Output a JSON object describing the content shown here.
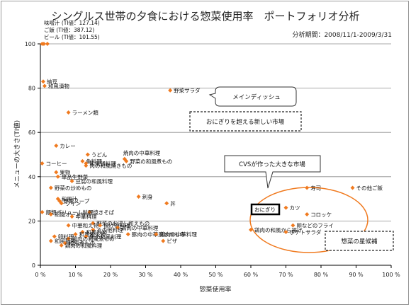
{
  "header": {
    "title": "シングルス世帯の夕食における惣菜使用率　ポートフォリオ分析",
    "period": "分析期間：2008/11/1-2009/3/31"
  },
  "colors": {
    "point": "#f07a1f",
    "ellipse": "#f07a1f",
    "grid": "#8c8c8c",
    "axis": "#000000"
  },
  "chart_data": {
    "type": "scatter",
    "xlabel": "惣菜使用率",
    "ylabel": "メニューの大きさ(TI値)",
    "xlim": [
      0,
      100
    ],
    "ylim": [
      0,
      100
    ],
    "x_ticks": [
      "0 %",
      "10 %",
      "20 %",
      "30 %",
      "40 %",
      "50 %",
      "60 %",
      "70 %",
      "80 %",
      "90 %",
      "100 %"
    ],
    "y_ticks": [
      "0",
      "20",
      "40",
      "60",
      "80",
      "100"
    ],
    "grid": true,
    "points": [
      {
        "label": "味噌汁 (TI値：127.14)",
        "x": 0.5,
        "y": 100,
        "la": "right"
      },
      {
        "label": "ご飯 (TI値：387.12)",
        "x": 1,
        "y": 100,
        "la": "right"
      },
      {
        "label": "ビール (TI値：101.55)",
        "x": 2,
        "y": 100,
        "la": "right"
      },
      {
        "label": "納豆",
        "x": 0.8,
        "y": 83,
        "la": "right"
      },
      {
        "label": "和風漬物",
        "x": 1.2,
        "y": 81,
        "la": "right"
      },
      {
        "label": "野菜サラダ",
        "x": 37,
        "y": 79,
        "la": "right"
      },
      {
        "label": "ラーメン類",
        "x": 8,
        "y": 69,
        "la": "right"
      },
      {
        "label": "カレー",
        "x": 4.5,
        "y": 54,
        "la": "right"
      },
      {
        "label": "うどん",
        "x": 13.5,
        "y": 50,
        "la": "right"
      },
      {
        "label": "焼肉の中華料理",
        "x": 24,
        "y": 48,
        "la": "top"
      },
      {
        "label": "野菜の和風煮もの",
        "x": 24.5,
        "y": 47,
        "la": "right"
      },
      {
        "label": "コーヒー",
        "x": 0.5,
        "y": 46,
        "la": "right"
      },
      {
        "label": "魚料理",
        "x": 12,
        "y": 47,
        "la": "right"
      },
      {
        "label": "和風鍋料理",
        "x": 13,
        "y": 46,
        "la": "right"
      },
      {
        "label": "肉の和風焼きもの",
        "x": 13,
        "y": 45,
        "la": "right"
      },
      {
        "label": "果物",
        "x": 4.5,
        "y": 42,
        "la": "right"
      },
      {
        "label": "単品生野菜",
        "x": 5,
        "y": 40,
        "la": "right"
      },
      {
        "label": "豆腐の和風料理",
        "x": 9,
        "y": 38,
        "la": "right"
      },
      {
        "label": "野菜の炒めもの",
        "x": 3,
        "y": 35,
        "la": "right"
      },
      {
        "label": "刺身",
        "x": 28,
        "y": 31,
        "la": "right"
      },
      {
        "label": "和風汁",
        "x": 5,
        "y": 30,
        "la": "right"
      },
      {
        "label": "丼",
        "x": 36,
        "y": 28,
        "la": "right"
      },
      {
        "label": "野菜スープ",
        "x": 5.5,
        "y": 29,
        "la": "right"
      },
      {
        "label": "ワイン",
        "x": 6,
        "y": 28,
        "la": "right"
      },
      {
        "label": "焼きそば",
        "x": 14,
        "y": 24,
        "la": "right"
      },
      {
        "label": "麺類ボリューム料理",
        "x": 0.5,
        "y": 24,
        "la": "right"
      },
      {
        "label": "和風オードブル",
        "x": 3,
        "y": 23,
        "la": "right"
      },
      {
        "label": "中華料理",
        "x": 9,
        "y": 22,
        "la": "right"
      },
      {
        "label": "野菜のお浸し和えもの",
        "x": 15,
        "y": 19,
        "la": "right"
      },
      {
        "label": "中華和え物",
        "x": 8,
        "y": 18,
        "la": "right"
      },
      {
        "label": "揚げ物料理",
        "x": 17,
        "y": 18,
        "la": "right"
      },
      {
        "label": "鶏肉の中華料理",
        "x": 22,
        "y": 17,
        "la": "right"
      },
      {
        "label": "その他料理",
        "x": 15,
        "y": 16,
        "la": "right"
      },
      {
        "label": "和風炒め",
        "x": 12,
        "y": 15,
        "la": "right"
      },
      {
        "label": "和風和え物",
        "x": 10,
        "y": 14,
        "la": "right"
      },
      {
        "label": "魚の和風料理",
        "x": 13,
        "y": 13,
        "la": "right"
      },
      {
        "label": "卵料理",
        "x": 4,
        "y": 13,
        "la": "right"
      },
      {
        "label": "鶏肉の和風煮もの",
        "x": 8,
        "y": 12,
        "la": "right"
      },
      {
        "label": "和風麺類",
        "x": 3,
        "y": 11,
        "la": "right"
      },
      {
        "label": "和風煮もの",
        "x": 7,
        "y": 10,
        "la": "right"
      },
      {
        "label": "鶏肉の和風料理",
        "x": 6,
        "y": 9,
        "la": "right"
      },
      {
        "label": "豚肉の中華風炒めもの",
        "x": 25,
        "y": 14,
        "la": "right"
      },
      {
        "label": "鶏肉の中華料理",
        "x": 33,
        "y": 14,
        "la": "right"
      },
      {
        "label": "ピザ",
        "x": 35,
        "y": 11,
        "la": "right"
      },
      {
        "label": "寿司",
        "x": 76,
        "y": 35,
        "la": "right"
      },
      {
        "label": "その他ご飯",
        "x": 89,
        "y": 35,
        "la": "right"
      },
      {
        "label": "カツ",
        "x": 70,
        "y": 26,
        "la": "right"
      },
      {
        "label": "おにぎり",
        "x": 61,
        "y": 24,
        "la": "right"
      },
      {
        "label": "コロッケ",
        "x": 76,
        "y": 23,
        "la": "right"
      },
      {
        "label": "鶏肉の和風から揚げ",
        "x": 60,
        "y": 16,
        "la": "right"
      },
      {
        "label": "卵などのフライ",
        "x": 72,
        "y": 18,
        "la": "right"
      },
      {
        "label": "ポテトサラダ",
        "x": 70,
        "y": 15,
        "la": "right"
      }
    ]
  },
  "annotations": {
    "main_dish": "メインディッシュ",
    "new_market": "おにぎりを超える新しい市場",
    "cvs_market": "CVSが作った大きな市場",
    "candidates": "惣菜の星候補",
    "onigiri_box": "おにぎり"
  }
}
